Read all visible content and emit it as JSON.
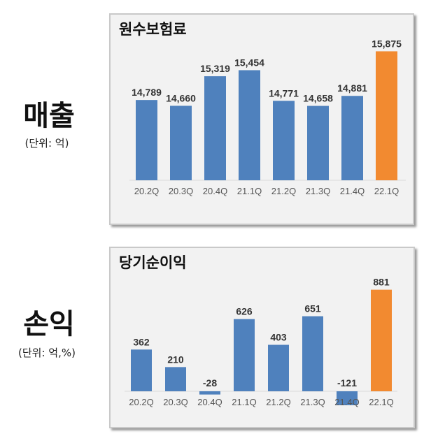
{
  "left_labels": {
    "sales_title": "매출",
    "sales_unit": "(단위: 억)",
    "profit_title": "손익",
    "profit_unit": "(단위: 억,%)"
  },
  "colors": {
    "bar": "#4f81bd",
    "highlight": "#f28a30",
    "label": "#333333",
    "tick": "#555555"
  },
  "chart_data": [
    {
      "type": "bar",
      "title": "원수보험료",
      "categories": [
        "20.2Q",
        "20.3Q",
        "20.4Q",
        "21.1Q",
        "21.2Q",
        "21.3Q",
        "21.4Q",
        "22.1Q"
      ],
      "values": [
        14789,
        14660,
        15319,
        15454,
        14771,
        14658,
        14881,
        15875
      ],
      "data_labels": [
        "14,789",
        "14,660",
        "15,319",
        "15,454",
        "14,771",
        "14,658",
        "14,881",
        "15,875"
      ],
      "highlight_index": 7,
      "ylim": [
        13000,
        16000
      ],
      "grid": false
    },
    {
      "type": "bar",
      "title": "당기순이익",
      "categories": [
        "20.2Q",
        "20.3Q",
        "20.4Q",
        "21.1Q",
        "21.2Q",
        "21.3Q",
        "21.4Q",
        "22.1Q"
      ],
      "values": [
        362,
        210,
        -28,
        626,
        403,
        651,
        -121,
        881
      ],
      "data_labels": [
        "362",
        "210",
        "-28",
        "626",
        "403",
        "651",
        "-121",
        "881"
      ],
      "highlight_index": 7,
      "ylim": [
        -150,
        950
      ],
      "grid": false
    }
  ]
}
